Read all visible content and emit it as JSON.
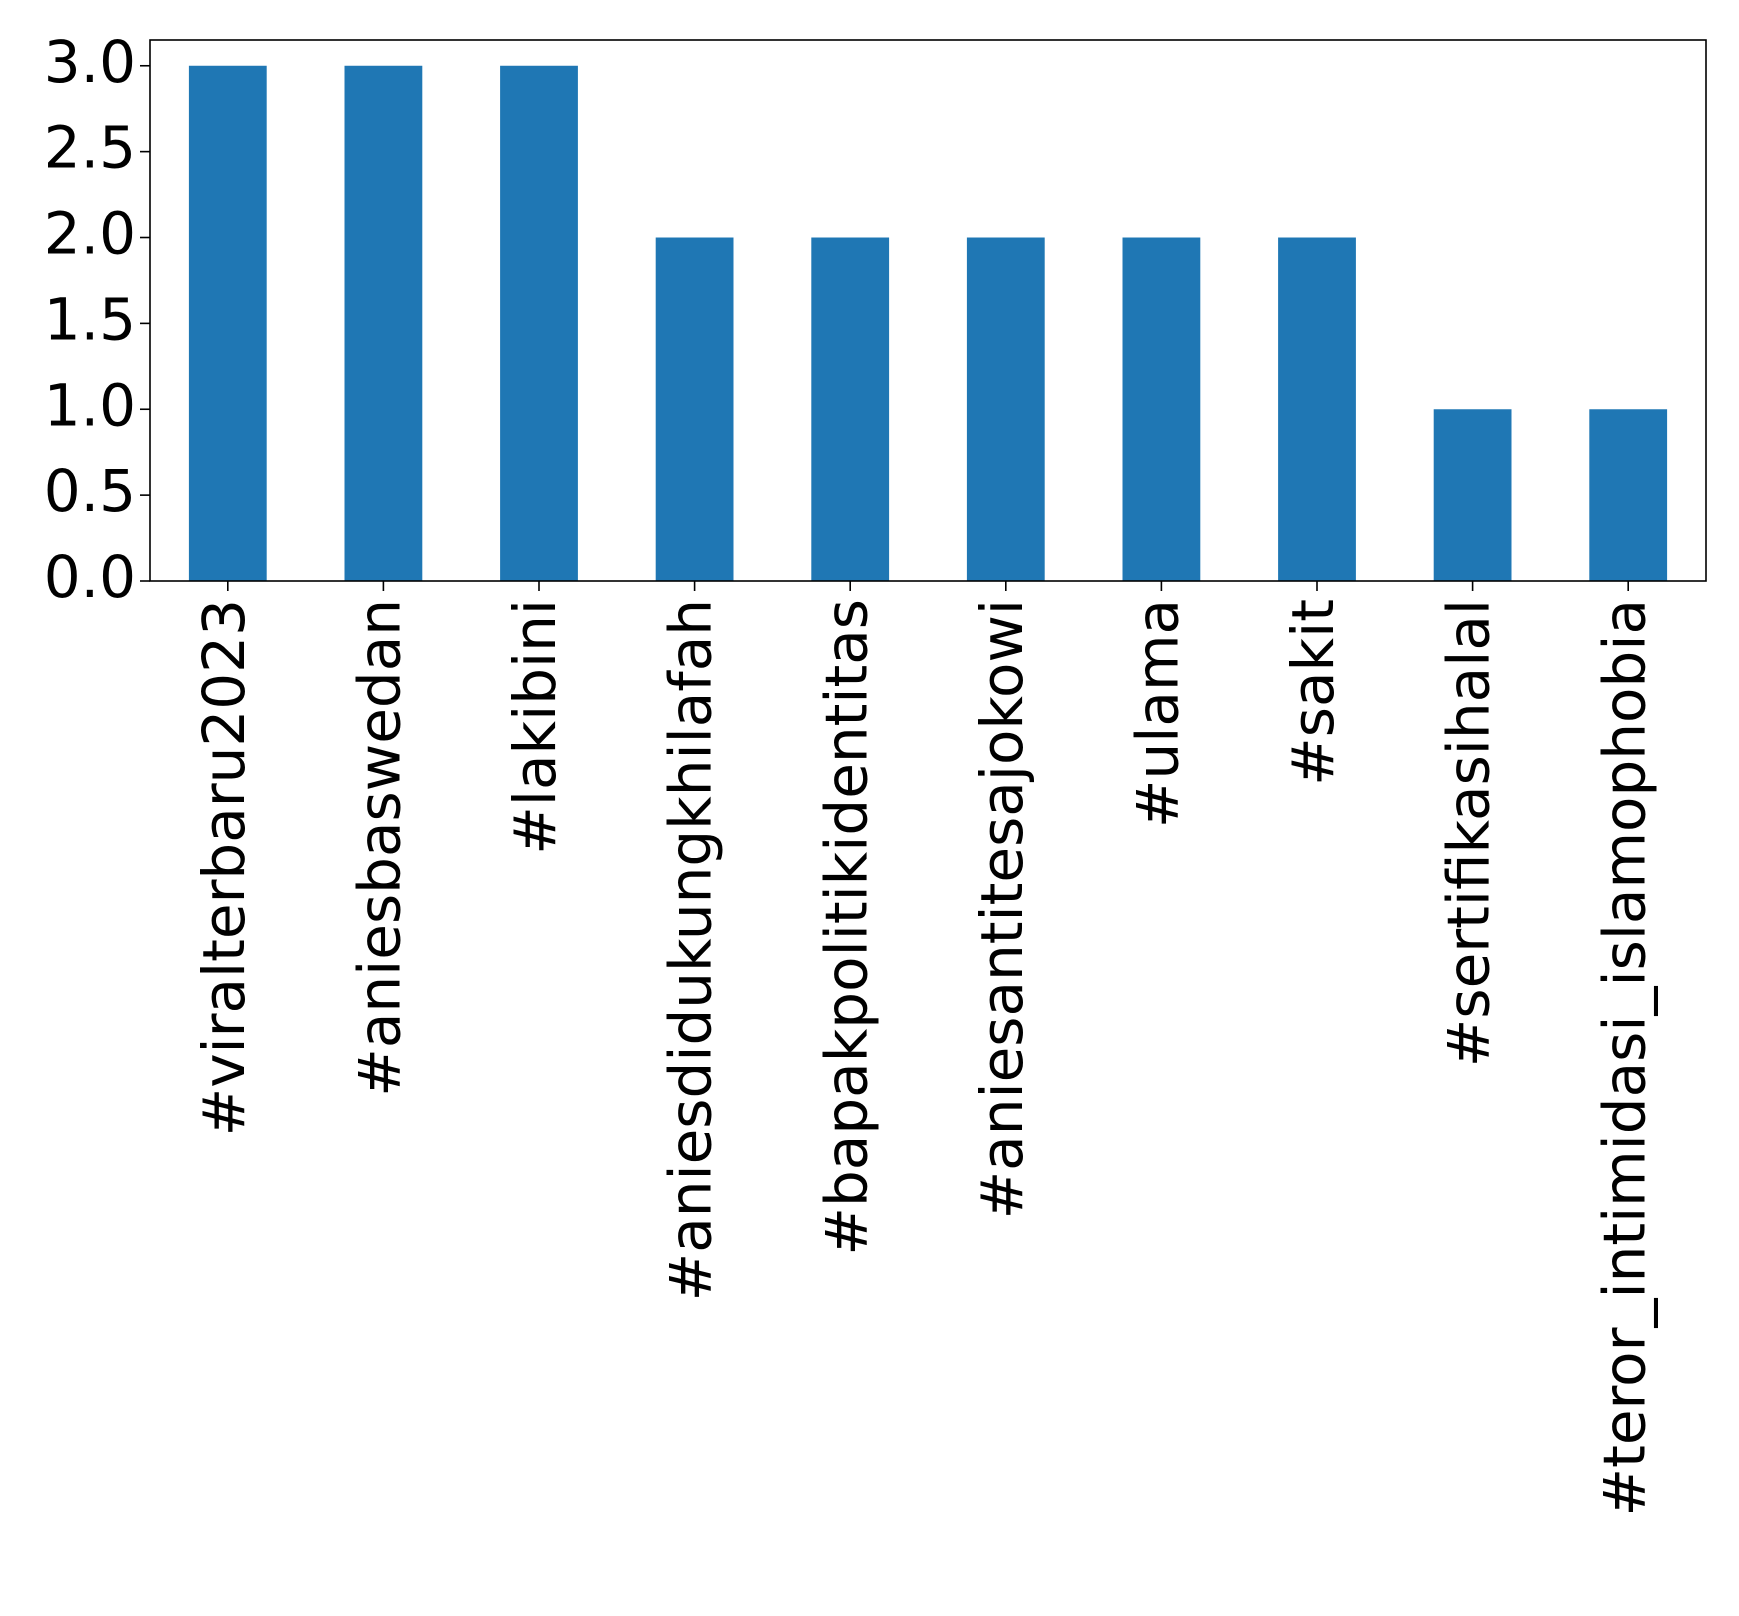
{
  "chart_data": {
    "type": "bar",
    "title": "",
    "xlabel": "",
    "ylabel": "",
    "categories": [
      "#viralterbaru2023",
      "#aniesbaswedan",
      "#lakibini",
      "#aniesdidukungkhilafah",
      "#bapakpolitikidentitas",
      "#aniesantitesajokowi",
      "#ulama",
      "#sakit",
      "#sertifikasihalal",
      "#teror_intimidasi_islamophobia"
    ],
    "values": [
      3,
      3,
      3,
      2,
      2,
      2,
      2,
      2,
      1,
      1
    ],
    "ylim": [
      0,
      3.15
    ],
    "yticks": [
      "0.0",
      "0.5",
      "1.0",
      "1.5",
      "2.0",
      "2.5",
      "3.0"
    ],
    "grid": false,
    "bar_color": "#1f77b4"
  }
}
